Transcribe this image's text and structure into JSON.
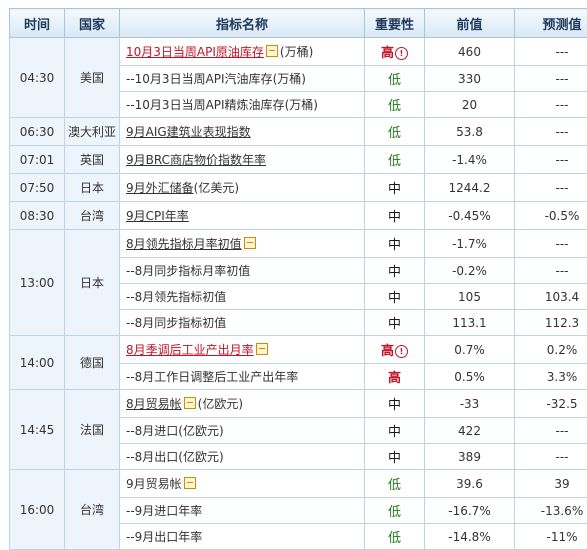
{
  "headers": [
    "时间",
    "国家",
    "指标名称",
    "重要性",
    "前值",
    "预测值"
  ],
  "groups": [
    {
      "time": "04:30",
      "country": "美国",
      "rows": [
        {
          "name": "10月3日当周API原油库存",
          "unit": "(万桶)",
          "style": "red",
          "toggle": true,
          "importance": "高",
          "importance_level": "high",
          "prev": "460",
          "forecast": "---"
        },
        {
          "name": "--10月3日当周API汽油库存",
          "unit": "(万桶)",
          "style": "plain",
          "toggle": false,
          "importance": "低",
          "importance_level": "low",
          "prev": "330",
          "forecast": "---"
        },
        {
          "name": "--10月3日当周API精炼油库存",
          "unit": "(万桶)",
          "style": "plain",
          "toggle": false,
          "importance": "低",
          "importance_level": "low",
          "prev": "20",
          "forecast": "---"
        }
      ]
    },
    {
      "time": "06:30",
      "country": "澳大利亚",
      "rows": [
        {
          "name": "9月AIG建筑业表现指数",
          "unit": "",
          "style": "underline",
          "toggle": false,
          "importance": "低",
          "importance_level": "low",
          "prev": "53.8",
          "forecast": "---"
        }
      ]
    },
    {
      "time": "07:01",
      "country": "英国",
      "rows": [
        {
          "name": "9月BRC商店物价指数年率",
          "unit": "",
          "style": "underline",
          "toggle": false,
          "importance": "低",
          "importance_level": "low",
          "prev": "-1.4%",
          "forecast": "---"
        }
      ]
    },
    {
      "time": "07:50",
      "country": "日本",
      "rows": [
        {
          "name": "9月外汇储备",
          "unit": "(亿美元)",
          "style": "underline",
          "toggle": false,
          "importance": "中",
          "importance_level": "mid",
          "prev": "1244.2",
          "forecast": "---"
        }
      ]
    },
    {
      "time": "08:30",
      "country": "台湾",
      "rows": [
        {
          "name": "9月CPI年率",
          "unit": "",
          "style": "underline",
          "toggle": false,
          "importance": "中",
          "importance_level": "mid",
          "prev": "-0.45%",
          "forecast": "-0.5%"
        }
      ]
    },
    {
      "time": "13:00",
      "country": "日本",
      "rows": [
        {
          "name": "8月领先指标月率初值",
          "unit": "",
          "style": "underline",
          "toggle": true,
          "importance": "中",
          "importance_level": "mid",
          "prev": "-1.7%",
          "forecast": "---"
        },
        {
          "name": "--8月同步指标月率初值",
          "unit": "",
          "style": "plain",
          "toggle": false,
          "importance": "中",
          "importance_level": "mid",
          "prev": "-0.2%",
          "forecast": "---"
        },
        {
          "name": "--8月领先指标初值",
          "unit": "",
          "style": "plain",
          "toggle": false,
          "importance": "中",
          "importance_level": "mid",
          "prev": "105",
          "forecast": "103.4"
        },
        {
          "name": "--8月同步指标初值",
          "unit": "",
          "style": "plain",
          "toggle": false,
          "importance": "中",
          "importance_level": "mid",
          "prev": "113.1",
          "forecast": "112.3"
        }
      ]
    },
    {
      "time": "14:00",
      "country": "德国",
      "rows": [
        {
          "name": "8月季调后工业产出月率",
          "unit": "",
          "style": "red",
          "toggle": true,
          "importance": "高",
          "importance_level": "high",
          "prev": "0.7%",
          "forecast": "0.2%"
        },
        {
          "name": "--8月工作日调整后工业产出年率",
          "unit": "",
          "style": "plain",
          "toggle": false,
          "importance": "高",
          "importance_level": "high",
          "prev": "0.5%",
          "forecast": "3.3%"
        }
      ]
    },
    {
      "time": "14:45",
      "country": "法国",
      "rows": [
        {
          "name": "8月贸易帐",
          "unit": "(亿欧元)",
          "style": "underline",
          "toggle": true,
          "importance": "中",
          "importance_level": "mid",
          "prev": "-33",
          "forecast": "-32.5"
        },
        {
          "name": "--8月进口",
          "unit": "(亿欧元)",
          "style": "plain",
          "toggle": false,
          "importance": "中",
          "importance_level": "mid",
          "prev": "422",
          "forecast": "---"
        },
        {
          "name": "--8月出口",
          "unit": "(亿欧元)",
          "style": "plain",
          "toggle": false,
          "importance": "中",
          "importance_level": "mid",
          "prev": "389",
          "forecast": "---"
        }
      ]
    },
    {
      "time": "16:00",
      "country": "台湾",
      "rows": [
        {
          "name": "9月贸易帐",
          "unit": "",
          "style": "plain",
          "toggle": true,
          "importance": "低",
          "importance_level": "low",
          "prev": "39.6",
          "forecast": "39"
        },
        {
          "name": "--9月进口年率",
          "unit": "",
          "style": "plain",
          "toggle": false,
          "importance": "低",
          "importance_level": "low",
          "prev": "-16.7%",
          "forecast": "-13.6%"
        },
        {
          "name": "--9月出口年率",
          "unit": "",
          "style": "plain",
          "toggle": false,
          "importance": "低",
          "importance_level": "low",
          "prev": "-14.8%",
          "forecast": "-11%"
        }
      ]
    }
  ]
}
